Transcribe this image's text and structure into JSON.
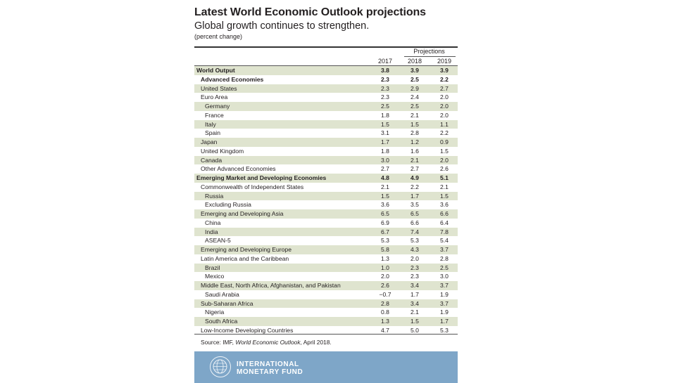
{
  "header": {
    "title": "Latest World Economic Outlook projections",
    "subtitle": "Global growth continues to strengthen.",
    "unit": "(percent change)",
    "projections_label": "Projections",
    "years": [
      "2017",
      "2018",
      "2019"
    ]
  },
  "chart_data": {
    "type": "table",
    "columns": [
      "2017",
      "2018",
      "2019"
    ],
    "rows": [
      {
        "label": "World Output",
        "values": [
          "3.8",
          "3.9",
          "3.9"
        ]
      },
      {
        "label": "Advanced Economies",
        "values": [
          "2.3",
          "2.5",
          "2.2"
        ]
      },
      {
        "label": "United States",
        "values": [
          "2.3",
          "2.9",
          "2.7"
        ]
      },
      {
        "label": "Euro Area",
        "values": [
          "2.3",
          "2.4",
          "2.0"
        ]
      },
      {
        "label": "Germany",
        "values": [
          "2.5",
          "2.5",
          "2.0"
        ]
      },
      {
        "label": "France",
        "values": [
          "1.8",
          "2.1",
          "2.0"
        ]
      },
      {
        "label": "Italy",
        "values": [
          "1.5",
          "1.5",
          "1.1"
        ]
      },
      {
        "label": "Spain",
        "values": [
          "3.1",
          "2.8",
          "2.2"
        ]
      },
      {
        "label": "Japan",
        "values": [
          "1.7",
          "1.2",
          "0.9"
        ]
      },
      {
        "label": "United Kingdom",
        "values": [
          "1.8",
          "1.6",
          "1.5"
        ]
      },
      {
        "label": "Canada",
        "values": [
          "3.0",
          "2.1",
          "2.0"
        ]
      },
      {
        "label": "Other Advanced Economies",
        "values": [
          "2.7",
          "2.7",
          "2.6"
        ]
      },
      {
        "label": "Emerging Market and Developing Economies",
        "values": [
          "4.8",
          "4.9",
          "5.1"
        ]
      },
      {
        "label": "Commonwealth of Independent States",
        "values": [
          "2.1",
          "2.2",
          "2.1"
        ]
      },
      {
        "label": "Russia",
        "values": [
          "1.5",
          "1.7",
          "1.5"
        ]
      },
      {
        "label": "Excluding Russia",
        "values": [
          "3.6",
          "3.5",
          "3.6"
        ]
      },
      {
        "label": "Emerging and Developing Asia",
        "values": [
          "6.5",
          "6.5",
          "6.6"
        ]
      },
      {
        "label": "China",
        "values": [
          "6.9",
          "6.6",
          "6.4"
        ]
      },
      {
        "label": "India",
        "values": [
          "6.7",
          "7.4",
          "7.8"
        ]
      },
      {
        "label": "ASEAN-5",
        "values": [
          "5.3",
          "5.3",
          "5.4"
        ]
      },
      {
        "label": "Emerging and Developing Europe",
        "values": [
          "5.8",
          "4.3",
          "3.7"
        ]
      },
      {
        "label": "Latin America and the Caribbean",
        "values": [
          "1.3",
          "2.0",
          "2.8"
        ]
      },
      {
        "label": "Brazil",
        "values": [
          "1.0",
          "2.3",
          "2.5"
        ]
      },
      {
        "label": "Mexico",
        "values": [
          "2.0",
          "2.3",
          "3.0"
        ]
      },
      {
        "label": "Middle East, North Africa, Afghanistan, and Pakistan",
        "values": [
          "2.6",
          "3.4",
          "3.7"
        ]
      },
      {
        "label": "Saudi Arabia",
        "values": [
          "−0.7",
          "1.7",
          "1.9"
        ]
      },
      {
        "label": "Sub-Saharan Africa",
        "values": [
          "2.8",
          "3.4",
          "3.7"
        ]
      },
      {
        "label": "Nigeria",
        "values": [
          "0.8",
          "2.1",
          "1.9"
        ]
      },
      {
        "label": "South Africa",
        "values": [
          "1.3",
          "1.5",
          "1.7"
        ]
      },
      {
        "label": "Low-Income Developing Countries",
        "values": [
          "4.7",
          "5.0",
          "5.3"
        ]
      }
    ]
  },
  "source": {
    "prefix": "Source: IMF, ",
    "publication": "World Economic Outlook",
    "suffix": ", April 2018."
  },
  "footer": {
    "org_line1": "INTERNATIONAL",
    "org_line2": "MONETARY FUND",
    "logo_icon": "imf-seal-icon",
    "banner_color": "#7ea6c8",
    "shade_color": "#dfe4cf"
  }
}
